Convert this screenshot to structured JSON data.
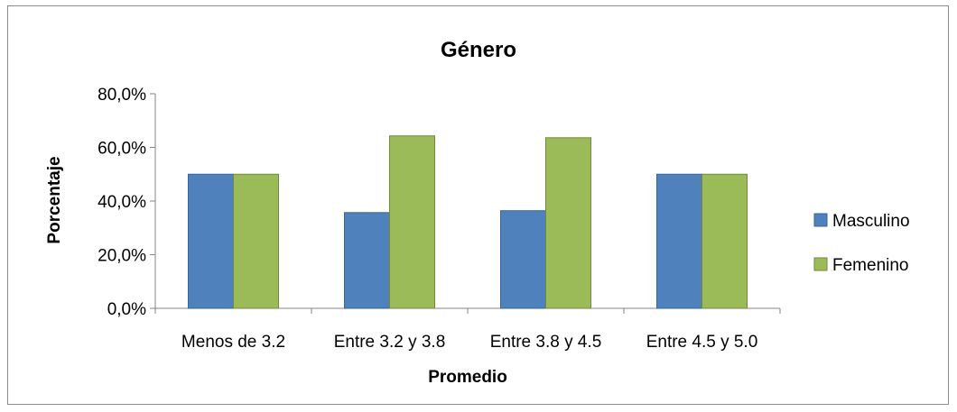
{
  "colors": {
    "masculino": "#4F81BD",
    "masculino_stroke": "#3A6597",
    "femenino": "#9BBB59",
    "femenino_stroke": "#71893F",
    "axis": "#868686"
  },
  "chart_data": {
    "type": "bar",
    "title": "Género",
    "xlabel": "Promedio",
    "ylabel": "Porcentaje",
    "categories": [
      "Menos de 3.2",
      "Entre 3.2 y 3.8",
      "Entre 3.8 y 4.5",
      "Entre 4.5 y 5.0"
    ],
    "series": [
      {
        "name": "Masculino",
        "values": [
          50.0,
          35.7,
          36.4,
          50.0
        ]
      },
      {
        "name": "Femenino",
        "values": [
          50.0,
          64.3,
          63.6,
          50.0
        ]
      }
    ],
    "ylim": [
      0,
      80
    ],
    "yticks": [
      "0,0%",
      "20,0%",
      "40,0%",
      "60,0%",
      "80,0%"
    ],
    "legend": "right",
    "grid": false
  }
}
